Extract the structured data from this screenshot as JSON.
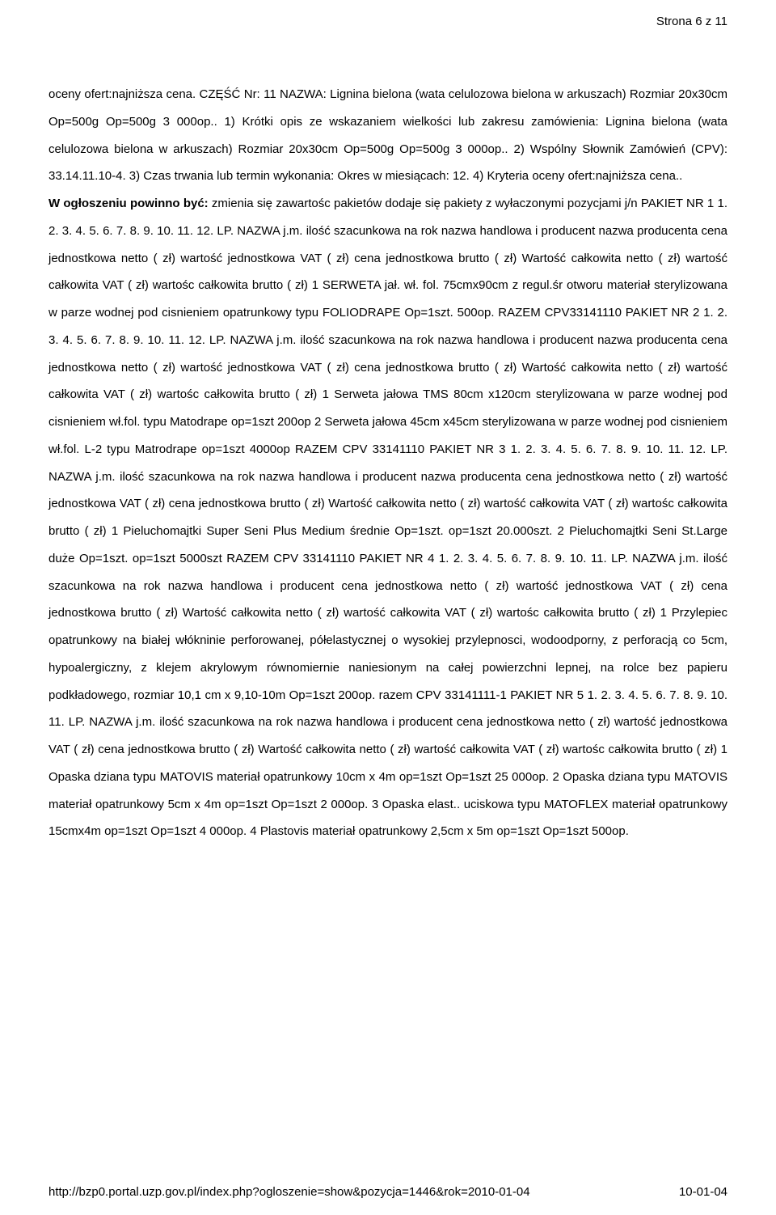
{
  "page_number": "Strona 6 z 11",
  "body_part1": "oceny ofert:najniższa cena. CZĘŚĆ Nr: 11 NAZWA: Lignina bielona (wata celulozowa bielona w arkuszach) Rozmiar 20x30cm Op=500g Op=500g 3 000op.. 1) Krótki opis ze wskazaniem wielkości lub zakresu zamówienia: Lignina bielona (wata celulozowa bielona w arkuszach) Rozmiar 20x30cm Op=500g Op=500g 3 000op.. 2) Wspólny Słownik Zamówień (CPV): 33.14.11.10-4. 3) Czas trwania lub termin wykonania: Okres w miesiącach: 12. 4) Kryteria oceny ofert:najniższa cena..",
  "body_bold": "W ogłoszeniu powinno być:",
  "body_part2": " zmienia się zawartośc pakietów dodaje się pakiety z wyłaczonymi pozycjami j/n PAKIET NR 1 1. 2. 3. 4. 5. 6. 7. 8. 9. 10. 11. 12. LP. NAZWA j.m. ilość szacunkowa na rok nazwa handlowa i producent nazwa producenta cena jednostkowa netto ( zł) wartość jednostkowa VAT ( zł) cena jednostkowa brutto ( zł) Wartość całkowita netto ( zł) wartość całkowita VAT ( zł) wartośc całkowita brutto ( zł) 1 SERWETA jał. wł. fol. 75cmx90cm z regul.śr otworu materiał sterylizowana w parze wodnej pod cisnieniem opatrunkowy typu FOLIODRAPE Op=1szt. 500op. RAZEM CPV33141110 PAKIET NR 2 1. 2. 3. 4. 5. 6. 7. 8. 9. 10. 11. 12. LP. NAZWA j.m. ilość szacunkowa na rok nazwa handlowa i producent nazwa producenta cena jednostkowa netto ( zł) wartość jednostkowa VAT ( zł) cena jednostkowa brutto ( zł) Wartość całkowita netto ( zł) wartość całkowita VAT ( zł) wartośc całkowita brutto ( zł) 1 Serweta jałowa TMS 80cm x120cm sterylizowana w parze wodnej pod cisnieniem wł.fol. typu Matodrape op=1szt 200op 2 Serweta jałowa 45cm x45cm sterylizowana w parze wodnej pod cisnieniem wł.fol. L-2 typu Matrodrape op=1szt 4000op RAZEM CPV 33141110 PAKIET NR 3 1. 2. 3. 4. 5. 6. 7. 8. 9. 10. 11. 12. LP. NAZWA j.m. ilość szacunkowa na rok nazwa handlowa i producent nazwa producenta cena jednostkowa netto ( zł) wartość jednostkowa VAT ( zł) cena jednostkowa brutto ( zł) Wartość całkowita netto ( zł) wartość całkowita VAT ( zł) wartośc całkowita brutto ( zł) 1 Pieluchomajtki Super Seni Plus Medium średnie Op=1szt. op=1szt 20.000szt. 2 Pieluchomajtki Seni St.Large duże Op=1szt. op=1szt 5000szt RAZEM CPV 33141110 PAKIET NR 4 1. 2. 3. 4. 5. 6. 7. 8. 9. 10. 11. LP. NAZWA j.m. ilość szacunkowa na rok nazwa handlowa i producent cena jednostkowa netto ( zł) wartość jednostkowa VAT ( zł) cena jednostkowa brutto ( zł) Wartość całkowita netto ( zł) wartość całkowita VAT ( zł) wartośc całkowita brutto ( zł) 1 Przylepiec opatrunkowy na białej włókninie perforowanej, półelastycznej o wysokiej przylepnosci, wodoodporny, z perforacją co 5cm, hypoalergiczny, z klejem akrylowym równomiernie naniesionym na całej powierzchni lepnej, na rolce bez papieru podkładowego, rozmiar 10,1 cm x 9,10-10m Op=1szt 200op. razem CPV 33141111-1 PAKIET NR 5 1. 2. 3. 4. 5. 6. 7. 8. 9. 10. 11. LP. NAZWA j.m. ilość szacunkowa na rok nazwa handlowa i producent cena jednostkowa netto ( zł) wartość jednostkowa VAT ( zł) cena jednostkowa brutto ( zł) Wartość całkowita netto ( zł) wartość całkowita VAT ( zł) wartośc całkowita brutto ( zł) 1 Opaska dziana typu MATOVIS materiał opatrunkowy 10cm x 4m op=1szt Op=1szt 25 000op. 2 Opaska dziana typu MATOVIS materiał opatrunkowy 5cm x 4m op=1szt Op=1szt 2 000op. 3 Opaska elast.. uciskowa typu MATOFLEX materiał opatrunkowy 15cmx4m op=1szt Op=1szt 4 000op. 4 Plastovis materiał opatrunkowy 2,5cm x 5m op=1szt Op=1szt 500op.",
  "footer_url": "http://bzp0.portal.uzp.gov.pl/index.php?ogloszenie=show&pozycja=1446&rok=2010-01-04",
  "footer_date": "10-01-04"
}
